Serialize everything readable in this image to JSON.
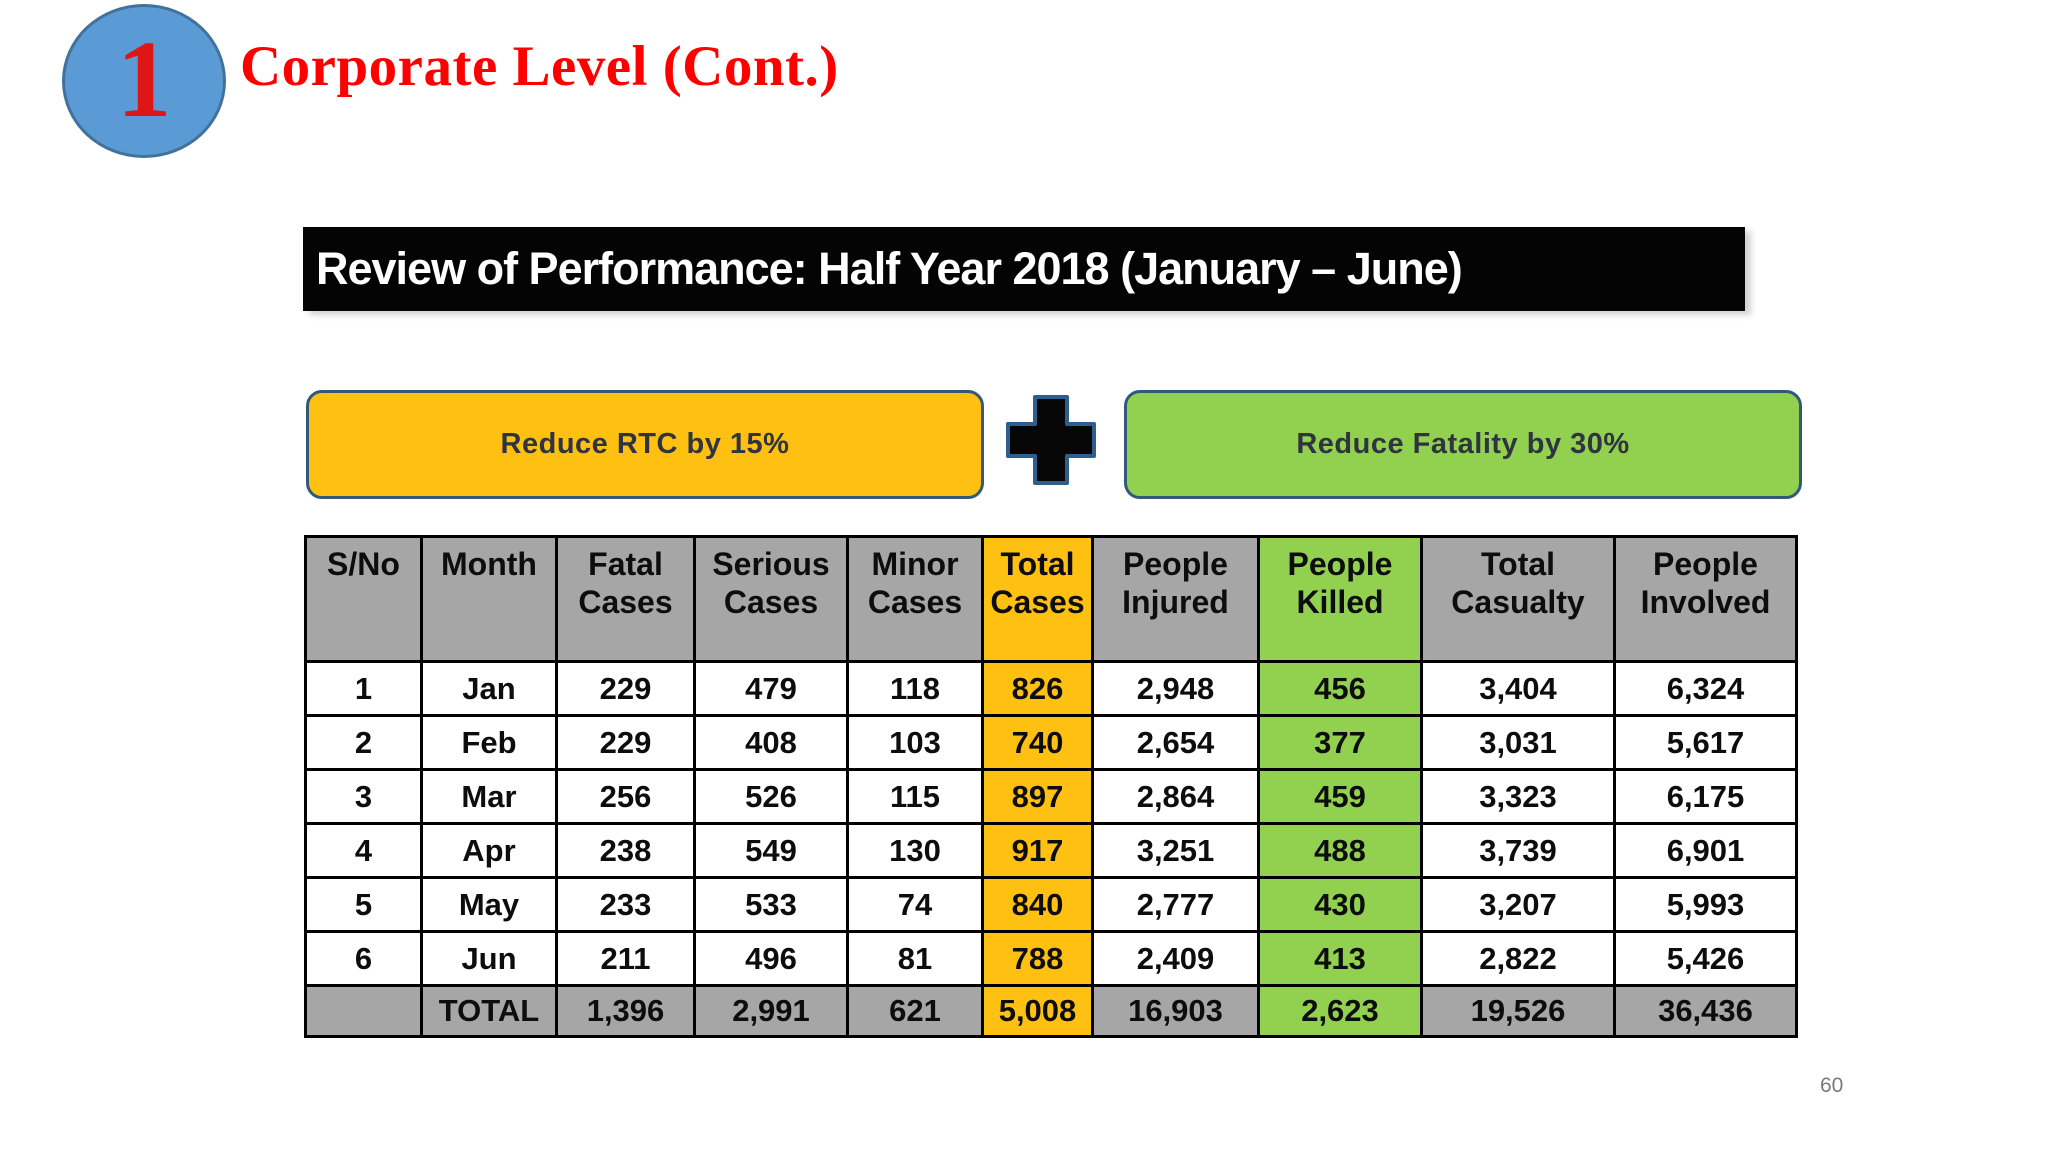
{
  "slide": {
    "badge_number": "1",
    "title": "Corporate Level (Cont.)",
    "banner_text": "Review of Performance: Half Year 2018 (January – June)",
    "page_number": "60"
  },
  "targets": {
    "rtc_label": "Reduce RTC by 15%",
    "plus_icon": "plus-cross-icon",
    "fatality_label": "Reduce Fatality by 30%"
  },
  "colors": {
    "highlight_orange": "#FEC011",
    "highlight_green": "#92D050",
    "header_gray": "#A6A6A6",
    "badge_blue": "#5B9BD5",
    "badge_border_blue": "#41719C",
    "title_red": "#FF0000",
    "banner_bg": "#000000",
    "box_border_blue": "#33597A"
  },
  "table": {
    "columns": [
      {
        "label": "S/No",
        "highlight": null
      },
      {
        "label": "Month",
        "highlight": null
      },
      {
        "label": "Fatal Cases",
        "highlight": null
      },
      {
        "label": "Serious Cases",
        "highlight": null
      },
      {
        "label": "Minor Cases",
        "highlight": null
      },
      {
        "label": "Total Cases",
        "highlight": "orange"
      },
      {
        "label": "People Injured",
        "highlight": null
      },
      {
        "label": "People Killed",
        "highlight": "green"
      },
      {
        "label": "Total Casualty",
        "highlight": null
      },
      {
        "label": "People Involved",
        "highlight": null
      }
    ],
    "rows": [
      [
        "1",
        "Jan",
        "229",
        "479",
        "118",
        "826",
        "2,948",
        "456",
        "3,404",
        "6,324"
      ],
      [
        "2",
        "Feb",
        "229",
        "408",
        "103",
        "740",
        "2,654",
        "377",
        "3,031",
        "5,617"
      ],
      [
        "3",
        "Mar",
        "256",
        "526",
        "115",
        "897",
        "2,864",
        "459",
        "3,323",
        "6,175"
      ],
      [
        "4",
        "Apr",
        "238",
        "549",
        "130",
        "917",
        "3,251",
        "488",
        "3,739",
        "6,901"
      ],
      [
        "5",
        "May",
        "233",
        "533",
        "74",
        "840",
        "2,777",
        "430",
        "3,207",
        "5,993"
      ],
      [
        "6",
        "Jun",
        "211",
        "496",
        "81",
        "788",
        "2,409",
        "413",
        "2,822",
        "5,426"
      ]
    ],
    "total_row": [
      "",
      "TOTAL",
      "1,396",
      "2,991",
      "621",
      "5,008",
      "16,903",
      "2,623",
      "19,526",
      "36,436"
    ]
  }
}
